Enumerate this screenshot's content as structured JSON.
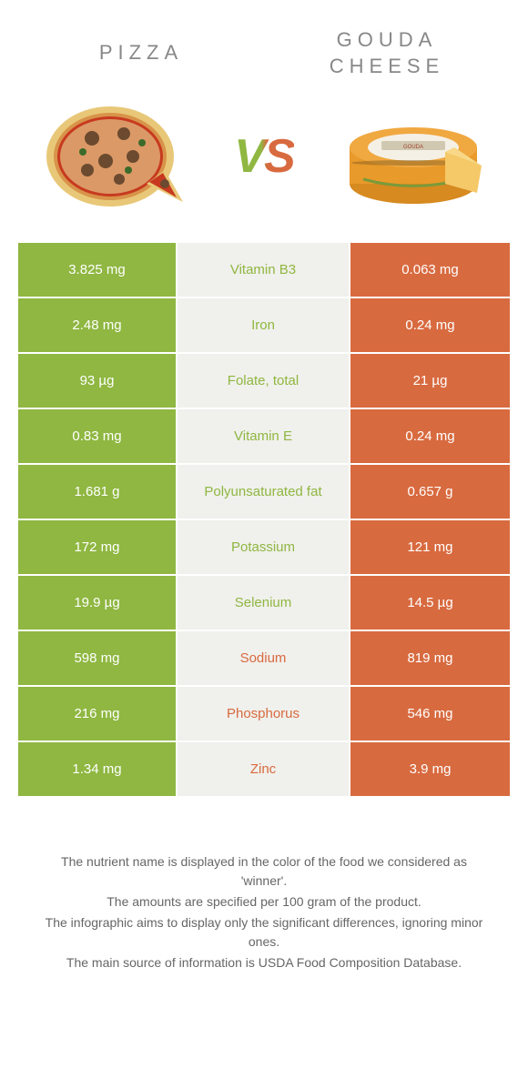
{
  "header": {
    "left_title": "PIZZA",
    "right_title": "GOUDA CHEESE",
    "vs": "VS"
  },
  "colors": {
    "green": "#8fb741",
    "orange": "#d86a3f",
    "light": "#f0f0ec",
    "white": "#ffffff"
  },
  "rows": [
    {
      "left": "3.825 mg",
      "label": "Vitamin B3",
      "right": "0.063 mg",
      "winner": "left"
    },
    {
      "left": "2.48 mg",
      "label": "Iron",
      "right": "0.24 mg",
      "winner": "left"
    },
    {
      "left": "93 µg",
      "label": "Folate, total",
      "right": "21 µg",
      "winner": "left"
    },
    {
      "left": "0.83 mg",
      "label": "Vitamin E",
      "right": "0.24 mg",
      "winner": "left"
    },
    {
      "left": "1.681 g",
      "label": "Polyunsaturated fat",
      "right": "0.657 g",
      "winner": "left"
    },
    {
      "left": "172 mg",
      "label": "Potassium",
      "right": "121 mg",
      "winner": "left"
    },
    {
      "left": "19.9 µg",
      "label": "Selenium",
      "right": "14.5 µg",
      "winner": "left"
    },
    {
      "left": "598 mg",
      "label": "Sodium",
      "right": "819 mg",
      "winner": "right"
    },
    {
      "left": "216 mg",
      "label": "Phosphorus",
      "right": "546 mg",
      "winner": "right"
    },
    {
      "left": "1.34 mg",
      "label": "Zinc",
      "right": "3.9 mg",
      "winner": "right"
    }
  ],
  "footer": {
    "line1": "The nutrient name is displayed in the color of the food we considered as 'winner'.",
    "line2": "The amounts are specified per 100 gram of the product.",
    "line3": "The infographic aims to display only the significant differences, ignoring minor ones.",
    "line4": "The main source of information is USDA Food Composition Database."
  }
}
